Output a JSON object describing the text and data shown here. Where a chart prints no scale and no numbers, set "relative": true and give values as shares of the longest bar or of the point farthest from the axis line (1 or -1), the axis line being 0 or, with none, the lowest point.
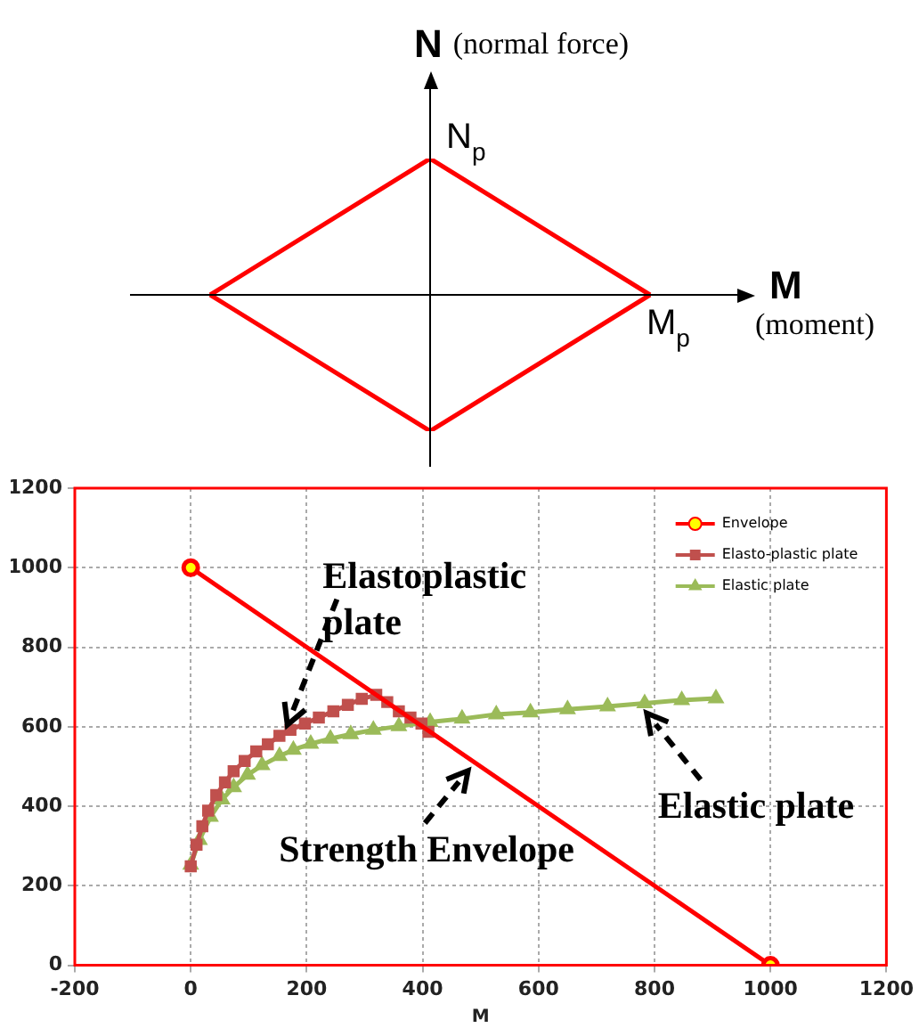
{
  "chart_data": [
    {
      "type": "line",
      "relative": true,
      "categories": [
        null,
        null,
        null
      ],
      "series": [
        {
          "color": "#ff0000",
          "values": [
            0,
            1,
            0
          ]
        },
        {
          "color": "#ff0000",
          "values": [
            0,
            -1,
            0
          ]
        }
      ],
      "xlabel": "M",
      "ylabel": "N",
      "annotations": [
        "(normal force)",
        "(moment)",
        "N$_{p}$",
        "M$_{p}$"
      ],
      "marker": "none"
    },
    {
      "type": "line",
      "xlabel": "M",
      "xlim": [
        -200,
        1200
      ],
      "xticks": [
        -200,
        0,
        200,
        400,
        600,
        800,
        1000,
        1200
      ],
      "ylim": [
        0,
        1200
      ],
      "yticks": [
        0,
        200,
        400,
        600,
        800,
        1000,
        1200
      ],
      "grid": true,
      "legend": "top right",
      "line_style": "solid",
      "series": [
        {
          "name": "Envelope",
          "color": "#ff0000",
          "marker": "circle",
          "x": [
            0,
            1000
          ],
          "values": [
            1000,
            0
          ]
        },
        {
          "name": "Elasto-plastic plate",
          "color": "#c0504d",
          "marker": "square",
          "x": [
            0,
            10,
            20,
            30,
            44,
            59,
            74,
            93,
            113,
            133,
            153,
            172,
            197,
            221,
            246,
            271,
            295,
            320,
            339,
            359,
            379,
            398,
            410
          ],
          "values": [
            249,
            303,
            350,
            389,
            428,
            460,
            488,
            514,
            538,
            556,
            577,
            592,
            608,
            623,
            639,
            655,
            670,
            680,
            662,
            639,
            623,
            608,
            587
          ]
        },
        {
          "name": "Elastic plate",
          "color": "#9bbb59",
          "marker": "triangle",
          "x": [
            0,
            15,
            34,
            54,
            74,
            98,
            123,
            153,
            177,
            207,
            241,
            276,
            315,
            359,
            413,
            468,
            527,
            586,
            650,
            719,
            783,
            847,
            906
          ],
          "values": [
            253,
            315,
            373,
            417,
            448,
            479,
            503,
            526,
            542,
            557,
            570,
            581,
            592,
            601,
            612,
            620,
            631,
            636,
            644,
            651,
            659,
            667,
            671
          ]
        }
      ],
      "annotations": [
        {
          "text": "Elastoplastic plate",
          "x": 160,
          "y": 580
        },
        {
          "text": "Strength Envelope",
          "x": 490,
          "y": 510
        },
        {
          "text": "Elastic plate",
          "x": 775,
          "y": 655
        }
      ]
    }
  ]
}
